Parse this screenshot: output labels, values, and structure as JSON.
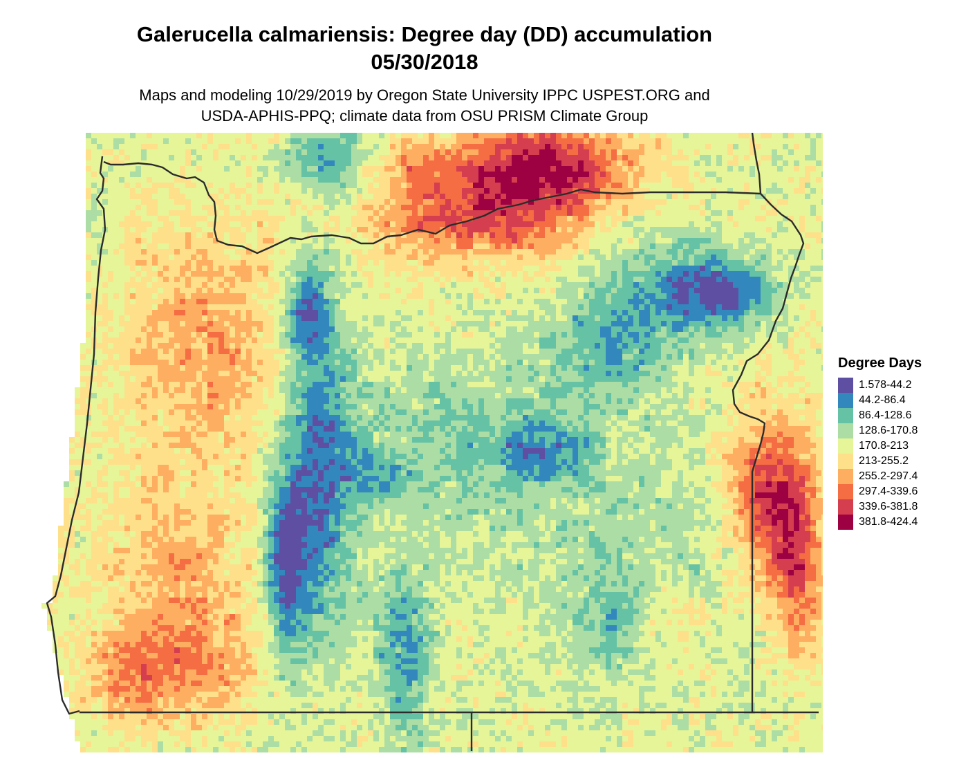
{
  "title_line1": "Galerucella calmariensis: Degree day (DD) accumulation",
  "title_line2": "05/30/2018",
  "subtitle_line1": "Maps and modeling 10/29/2019 by Oregon State University IPPC USPEST.ORG and",
  "subtitle_line2": "USDA-APHIS-PPQ; climate data from OSU PRISM Climate Group",
  "legend": {
    "title": "Degree Days",
    "bins": [
      {
        "label": "1.578-44.2",
        "color": "#5E4FA2"
      },
      {
        "label": "44.2-86.4",
        "color": "#3288BD"
      },
      {
        "label": "86.4-128.6",
        "color": "#66C2A5"
      },
      {
        "label": "128.6-170.8",
        "color": "#ABDDA4"
      },
      {
        "label": "170.8-213",
        "color": "#E6F598"
      },
      {
        "label": "213-255.2",
        "color": "#FEE08B"
      },
      {
        "label": "255.2-297.4",
        "color": "#FDAE61"
      },
      {
        "label": "297.4-339.6",
        "color": "#F46D43"
      },
      {
        "label": "339.6-381.8",
        "color": "#D53E4F"
      },
      {
        "label": "381.8-424.4",
        "color": "#9E0142"
      }
    ]
  },
  "map": {
    "region": "Oregon",
    "boundary_color": "#2b2b2b"
  }
}
